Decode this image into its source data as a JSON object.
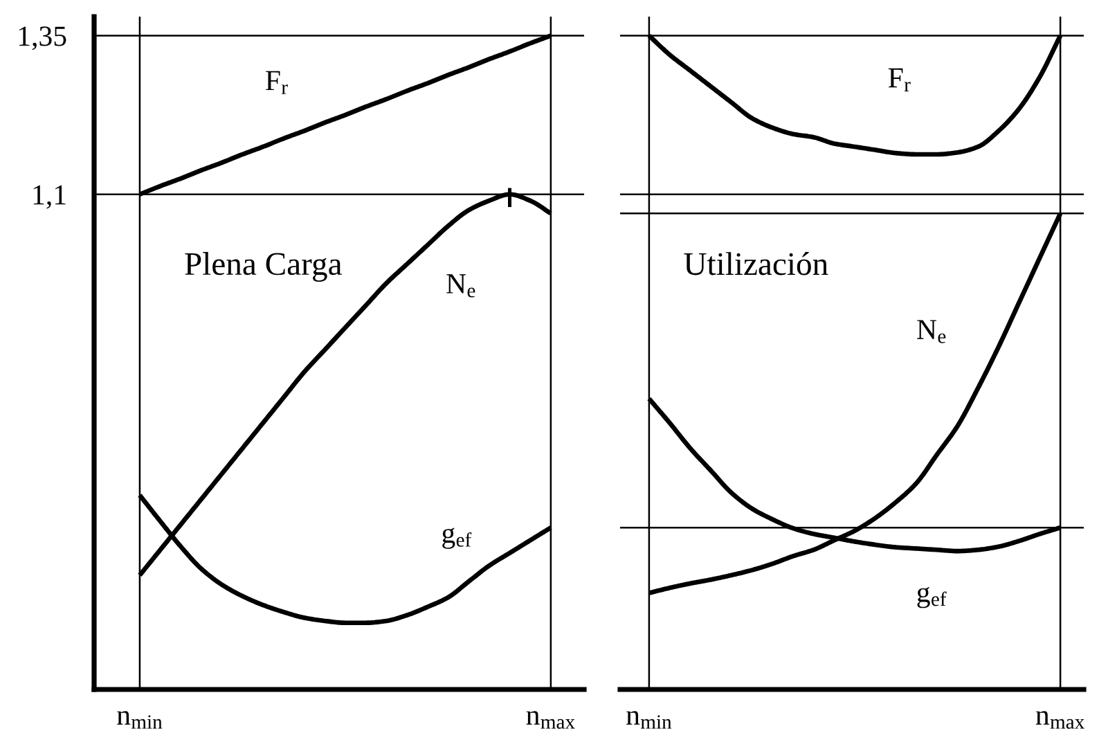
{
  "chart_data": [
    {
      "type": "line",
      "title": "Plena Carga",
      "categories": [
        "n$_{min}$",
        null,
        null,
        null,
        null,
        null,
        null,
        null,
        null,
        null,
        null,
        null,
        null,
        null,
        null,
        null,
        null,
        null,
        null,
        null,
        "n$_{max}$"
      ],
      "ylim": [
        0.32,
        1.38
      ],
      "yticks": [
        {
          "value": 1.1,
          "label": "1,1"
        },
        {
          "value": 1.35,
          "label": "1,35"
        }
      ],
      "grid": true,
      "series": [
        {
          "name": "F$_{r}$",
          "color": "#000000",
          "values": [
            1.1,
            1.113,
            1.125,
            1.138,
            1.15,
            1.163,
            1.175,
            1.188,
            1.2,
            1.213,
            1.225,
            1.238,
            1.25,
            1.263,
            1.275,
            1.288,
            1.3,
            1.313,
            1.325,
            1.338,
            1.35
          ]
        },
        {
          "name": "N$_{e}$",
          "color": "#000000",
          "values": [
            0.5,
            0.54,
            0.58,
            0.62,
            0.66,
            0.7,
            0.74,
            0.78,
            0.82,
            0.855,
            0.89,
            0.925,
            0.96,
            0.99,
            1.02,
            1.05,
            1.075,
            1.09,
            1.1,
            1.09,
            1.07
          ],
          "errors": [
            null,
            null,
            null,
            null,
            null,
            null,
            null,
            null,
            null,
            null,
            null,
            null,
            null,
            null,
            null,
            null,
            null,
            null,
            [
              1.08,
              1.11
            ],
            null,
            null
          ]
        },
        {
          "name": "g$_{ef}$",
          "color": "#000000",
          "values": [
            0.626,
            0.585,
            0.545,
            0.51,
            0.485,
            0.467,
            0.453,
            0.442,
            0.433,
            0.428,
            0.425,
            0.425,
            0.428,
            0.437,
            0.45,
            0.465,
            0.49,
            0.515,
            0.535,
            0.555,
            0.575
          ]
        }
      ]
    },
    {
      "type": "line",
      "title": "Utilización",
      "categories": [
        "n$_{min}$",
        null,
        null,
        null,
        null,
        null,
        null,
        null,
        null,
        null,
        null,
        null,
        null,
        null,
        null,
        null,
        null,
        null,
        null,
        null,
        "n$_{max}$"
      ],
      "ylim": [
        0.32,
        1.38
      ],
      "tick_labels": "x",
      "grid": "x",
      "series": [
        {
          "name": "F$_{r}$",
          "color": "#000000",
          "values": [
            1.35,
            1.32,
            1.295,
            1.27,
            1.245,
            1.22,
            1.205,
            1.195,
            1.19,
            1.18,
            1.175,
            1.17,
            1.165,
            1.163,
            1.163,
            1.166,
            1.175,
            1.2,
            1.235,
            1.285,
            1.35
          ]
        },
        {
          "name": "N$_{e}$",
          "color": "#000000",
          "values": [
            0.472,
            0.48,
            0.487,
            0.493,
            0.5,
            0.508,
            0.518,
            0.53,
            0.54,
            0.555,
            0.57,
            0.59,
            0.615,
            0.645,
            0.69,
            0.735,
            0.795,
            0.86,
            0.93,
            1.0,
            1.07
          ]
        },
        {
          "name": "g$_{ef}$",
          "color": "#000000",
          "values": [
            0.778,
            0.74,
            0.7,
            0.665,
            0.63,
            0.605,
            0.588,
            0.574,
            0.565,
            0.559,
            0.553,
            0.548,
            0.544,
            0.542,
            0.54,
            0.538,
            0.54,
            0.545,
            0.554,
            0.565,
            0.575
          ]
        }
      ],
      "ref_lines": [
        {
          "axis": "y",
          "value": 1.35,
          "color": "#000000"
        },
        {
          "axis": "y",
          "value": 1.1,
          "color": "#000000"
        },
        {
          "axis": "y",
          "value": 1.07,
          "color": "#000000"
        },
        {
          "axis": "y",
          "value": 0.575,
          "color": "#000000"
        }
      ]
    }
  ]
}
